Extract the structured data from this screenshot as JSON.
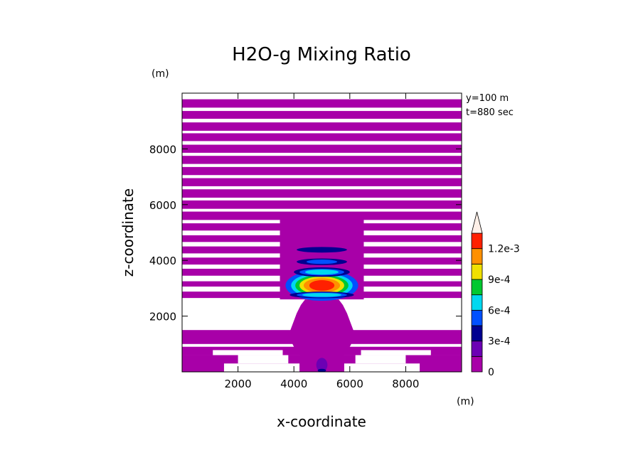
{
  "chart_data": {
    "type": "heatmap",
    "title": "H2O-g Mixing Ratio",
    "xlabel": "x-coordinate",
    "ylabel": "z-coordinate",
    "x_unit": "(m)",
    "y_unit": "(m)",
    "xlim": [
      0,
      10000
    ],
    "ylim": [
      0,
      10000
    ],
    "x_ticks": [
      {
        "value": 2000,
        "label": "2000"
      },
      {
        "value": 4000,
        "label": "4000"
      },
      {
        "value": 6000,
        "label": "6000"
      },
      {
        "value": 8000,
        "label": "8000"
      }
    ],
    "y_ticks": [
      {
        "value": 2000,
        "label": "2000"
      },
      {
        "value": 4000,
        "label": "4000"
      },
      {
        "value": 6000,
        "label": "6000"
      },
      {
        "value": 8000,
        "label": "8000"
      }
    ],
    "annotations": [
      "y=100 m",
      "t=880 sec"
    ],
    "colorbar": {
      "levels": [
        0,
        0.00015,
        0.0003,
        0.00045,
        0.0006,
        0.00075,
        0.0009,
        0.00105,
        0.0012,
        0.00135
      ],
      "colors": [
        "#a800a8",
        "#6c00b4",
        "#000090",
        "#0050ff",
        "#00d8f0",
        "#00c830",
        "#f0e000",
        "#ff9000",
        "#ff2000",
        "#ff9898",
        "#fff0e8"
      ],
      "labels": [
        {
          "value": 0,
          "label": "0"
        },
        {
          "value": 0.0003,
          "label": "3e-4"
        },
        {
          "value": 0.0006,
          "label": "6e-4"
        },
        {
          "value": 0.0009,
          "label": "9e-4"
        },
        {
          "value": 0.0012,
          "label": "1.2e-3"
        }
      ],
      "extend": "max"
    },
    "background_color": "#ffffff",
    "base_fill_color": "#a800a8",
    "stripes": [
      {
        "z0": 9480,
        "z1": 9780,
        "x0": 0,
        "x1": 10000
      },
      {
        "z0": 9080,
        "z1": 9360,
        "x0": 0,
        "x1": 10000
      },
      {
        "z0": 8650,
        "z1": 8950,
        "x0": 0,
        "x1": 10000
      },
      {
        "z0": 8280,
        "z1": 8560,
        "x0": 0,
        "x1": 10000
      },
      {
        "z0": 7860,
        "z1": 8150,
        "x0": 0,
        "x1": 10000
      },
      {
        "z0": 7460,
        "z1": 7750,
        "x0": 0,
        "x1": 10000
      },
      {
        "z0": 7060,
        "z1": 7350,
        "x0": 0,
        "x1": 10000
      },
      {
        "z0": 6660,
        "z1": 6950,
        "x0": 0,
        "x1": 10000
      },
      {
        "z0": 6250,
        "z1": 6550,
        "x0": 0,
        "x1": 10000
      },
      {
        "z0": 5850,
        "z1": 6150,
        "x0": 0,
        "x1": 10000
      },
      {
        "z0": 5450,
        "z1": 5750,
        "x0": 0,
        "x1": 10000
      },
      {
        "z0": 5070,
        "z1": 5330,
        "x0": 0,
        "x1": 10000
      },
      {
        "z0": 4660,
        "z1": 4900,
        "x0": 0,
        "x1": 10000
      },
      {
        "z0": 4250,
        "z1": 4500,
        "x0": 0,
        "x1": 10000
      },
      {
        "z0": 3850,
        "z1": 4100,
        "x0": 0,
        "x1": 10000
      },
      {
        "z0": 3450,
        "z1": 3700,
        "x0": 0,
        "x1": 10000
      },
      {
        "z0": 3060,
        "z1": 3250,
        "x0": 0,
        "x1": 10000
      },
      {
        "z0": 2650,
        "z1": 2880,
        "x0": 0,
        "x1": 10000
      },
      {
        "z0": 1000,
        "z1": 1500,
        "x0": 0,
        "x1": 10000
      },
      {
        "z0": 600,
        "z1": 900,
        "x0": 0,
        "x1": 10000
      },
      {
        "z0": 0,
        "z1": 600,
        "x0": 0,
        "x1": 10000
      }
    ],
    "white_gaps": [
      {
        "z0": 600,
        "z1": 780,
        "x0": 1100,
        "x1": 3600
      },
      {
        "z0": 600,
        "z1": 780,
        "x0": 6400,
        "x1": 8900
      },
      {
        "z0": 300,
        "z1": 600,
        "x0": 2000,
        "x1": 3800
      },
      {
        "z0": 300,
        "z1": 600,
        "x0": 6200,
        "x1": 8000
      },
      {
        "z0": 0,
        "z1": 300,
        "x0": 1500,
        "x1": 4200
      },
      {
        "z0": 0,
        "z1": 300,
        "x0": 5800,
        "x1": 8500
      }
    ],
    "plume": {
      "center_x": 5000,
      "profile": [
        {
          "z": 0,
          "half_width": 600
        },
        {
          "z": 500,
          "half_width": 700
        },
        {
          "z": 900,
          "half_width": 1000
        },
        {
          "z": 1300,
          "half_width": 1200
        },
        {
          "z": 1700,
          "half_width": 1050
        },
        {
          "z": 2100,
          "half_width": 900
        },
        {
          "z": 2400,
          "half_width": 750
        },
        {
          "z": 2600,
          "half_width": 600
        }
      ]
    },
    "blobs": [
      {
        "cx": 5000,
        "cz": 3100,
        "rx": 1300,
        "rz": 550,
        "level": 3
      },
      {
        "cx": 5000,
        "cz": 3100,
        "rx": 1100,
        "rz": 450,
        "level": 4
      },
      {
        "cx": 5000,
        "cz": 3100,
        "rx": 950,
        "rz": 380,
        "level": 5
      },
      {
        "cx": 5000,
        "cz": 3100,
        "rx": 800,
        "rz": 320,
        "level": 6
      },
      {
        "cx": 5000,
        "cz": 3100,
        "rx": 650,
        "rz": 260,
        "level": 7
      },
      {
        "cx": 5000,
        "cz": 3100,
        "rx": 450,
        "rz": 190,
        "level": 8
      },
      {
        "cx": 5000,
        "cz": 3580,
        "rx": 1000,
        "rz": 170,
        "level": 2
      },
      {
        "cx": 5000,
        "cz": 3580,
        "rx": 800,
        "rz": 120,
        "level": 3
      },
      {
        "cx": 5000,
        "cz": 3580,
        "rx": 600,
        "rz": 90,
        "level": 4
      },
      {
        "cx": 5000,
        "cz": 3950,
        "rx": 900,
        "rz": 120,
        "level": 2
      },
      {
        "cx": 5000,
        "cz": 3950,
        "rx": 550,
        "rz": 80,
        "level": 3
      },
      {
        "cx": 5000,
        "cz": 4380,
        "rx": 900,
        "rz": 100,
        "level": 2
      },
      {
        "cx": 5000,
        "cz": 2760,
        "rx": 1150,
        "rz": 120,
        "level": 2
      },
      {
        "cx": 5000,
        "cz": 2760,
        "rx": 900,
        "rz": 90,
        "level": 3
      },
      {
        "cx": 5000,
        "cz": 2760,
        "rx": 700,
        "rz": 70,
        "level": 4
      },
      {
        "cx": 5000,
        "cz": 250,
        "rx": 200,
        "rz": 250,
        "level": 1
      },
      {
        "cx": 5000,
        "cz": 50,
        "rx": 150,
        "rz": 60,
        "level": 2
      }
    ]
  }
}
